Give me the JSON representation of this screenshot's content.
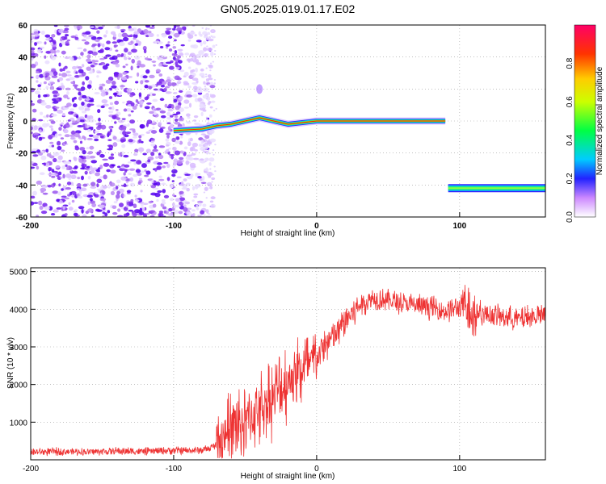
{
  "title": "GN05.2025.019.01.17.E02",
  "chart_data": [
    {
      "type": "heatmap",
      "xlabel": "Height of straight line (km)",
      "ylabel": "Frequency (Hz)",
      "xlim": [
        -200,
        160
      ],
      "ylim": [
        -60,
        60
      ],
      "xticks": [
        "-200",
        "-100",
        "0",
        "100"
      ],
      "yticks": [
        "60",
        "40",
        "20",
        "0",
        "-20",
        "-40",
        "-60"
      ],
      "colorbar": {
        "label": "Normalized spectral amplitude",
        "range": [
          0,
          1
        ],
        "ticks": [
          "0.0",
          "0.2",
          "0.4",
          "0.6",
          "0.8"
        ]
      },
      "features": {
        "noise_region_x": [
          -200,
          -80
        ],
        "main_band": [
          [
            -100,
            -6
          ],
          [
            -80,
            -5
          ],
          [
            -70,
            -3
          ],
          [
            -60,
            -2
          ],
          [
            -50,
            0
          ],
          [
            -40,
            2
          ],
          [
            -30,
            0
          ],
          [
            -20,
            -2
          ],
          [
            -10,
            -1
          ],
          [
            0,
            0
          ],
          [
            20,
            0
          ],
          [
            50,
            0
          ],
          [
            90,
            0
          ]
        ],
        "lower_band": [
          [
            92,
            -42
          ],
          [
            160,
            -42
          ]
        ]
      },
      "grid": true
    },
    {
      "type": "line",
      "xlabel": "Height of straight line (km)",
      "ylabel": "SNR (10 * v/v)",
      "xlim": [
        -200,
        160
      ],
      "ylim": [
        0,
        5100
      ],
      "xticks": [
        "-200",
        "-100",
        "0",
        "100"
      ],
      "yticks": [
        "5000",
        "4000",
        "3000",
        "2000",
        "1000"
      ],
      "series": [
        {
          "color": "#ee3333",
          "x": [
            -200,
            -180,
            -160,
            -140,
            -120,
            -100,
            -90,
            -80,
            -75,
            -70,
            -65,
            -60,
            -55,
            -50,
            -45,
            -40,
            -35,
            -30,
            -25,
            -20,
            -15,
            -10,
            -5,
            0,
            5,
            10,
            15,
            20,
            25,
            30,
            35,
            40,
            50,
            60,
            70,
            80,
            90,
            100,
            105,
            110,
            115,
            120,
            130,
            140,
            150,
            160
          ],
          "y": [
            200,
            220,
            210,
            230,
            220,
            250,
            240,
            260,
            300,
            400,
            650,
            800,
            900,
            1000,
            1200,
            1350,
            1500,
            1700,
            1900,
            2100,
            2300,
            2400,
            2500,
            2700,
            3000,
            3200,
            3400,
            3700,
            3900,
            4100,
            4200,
            4300,
            4250,
            4150,
            4100,
            4050,
            3950,
            4050,
            4100,
            3950,
            3900,
            3850,
            3800,
            3750,
            3800,
            3850
          ]
        }
      ],
      "grid": true
    }
  ]
}
